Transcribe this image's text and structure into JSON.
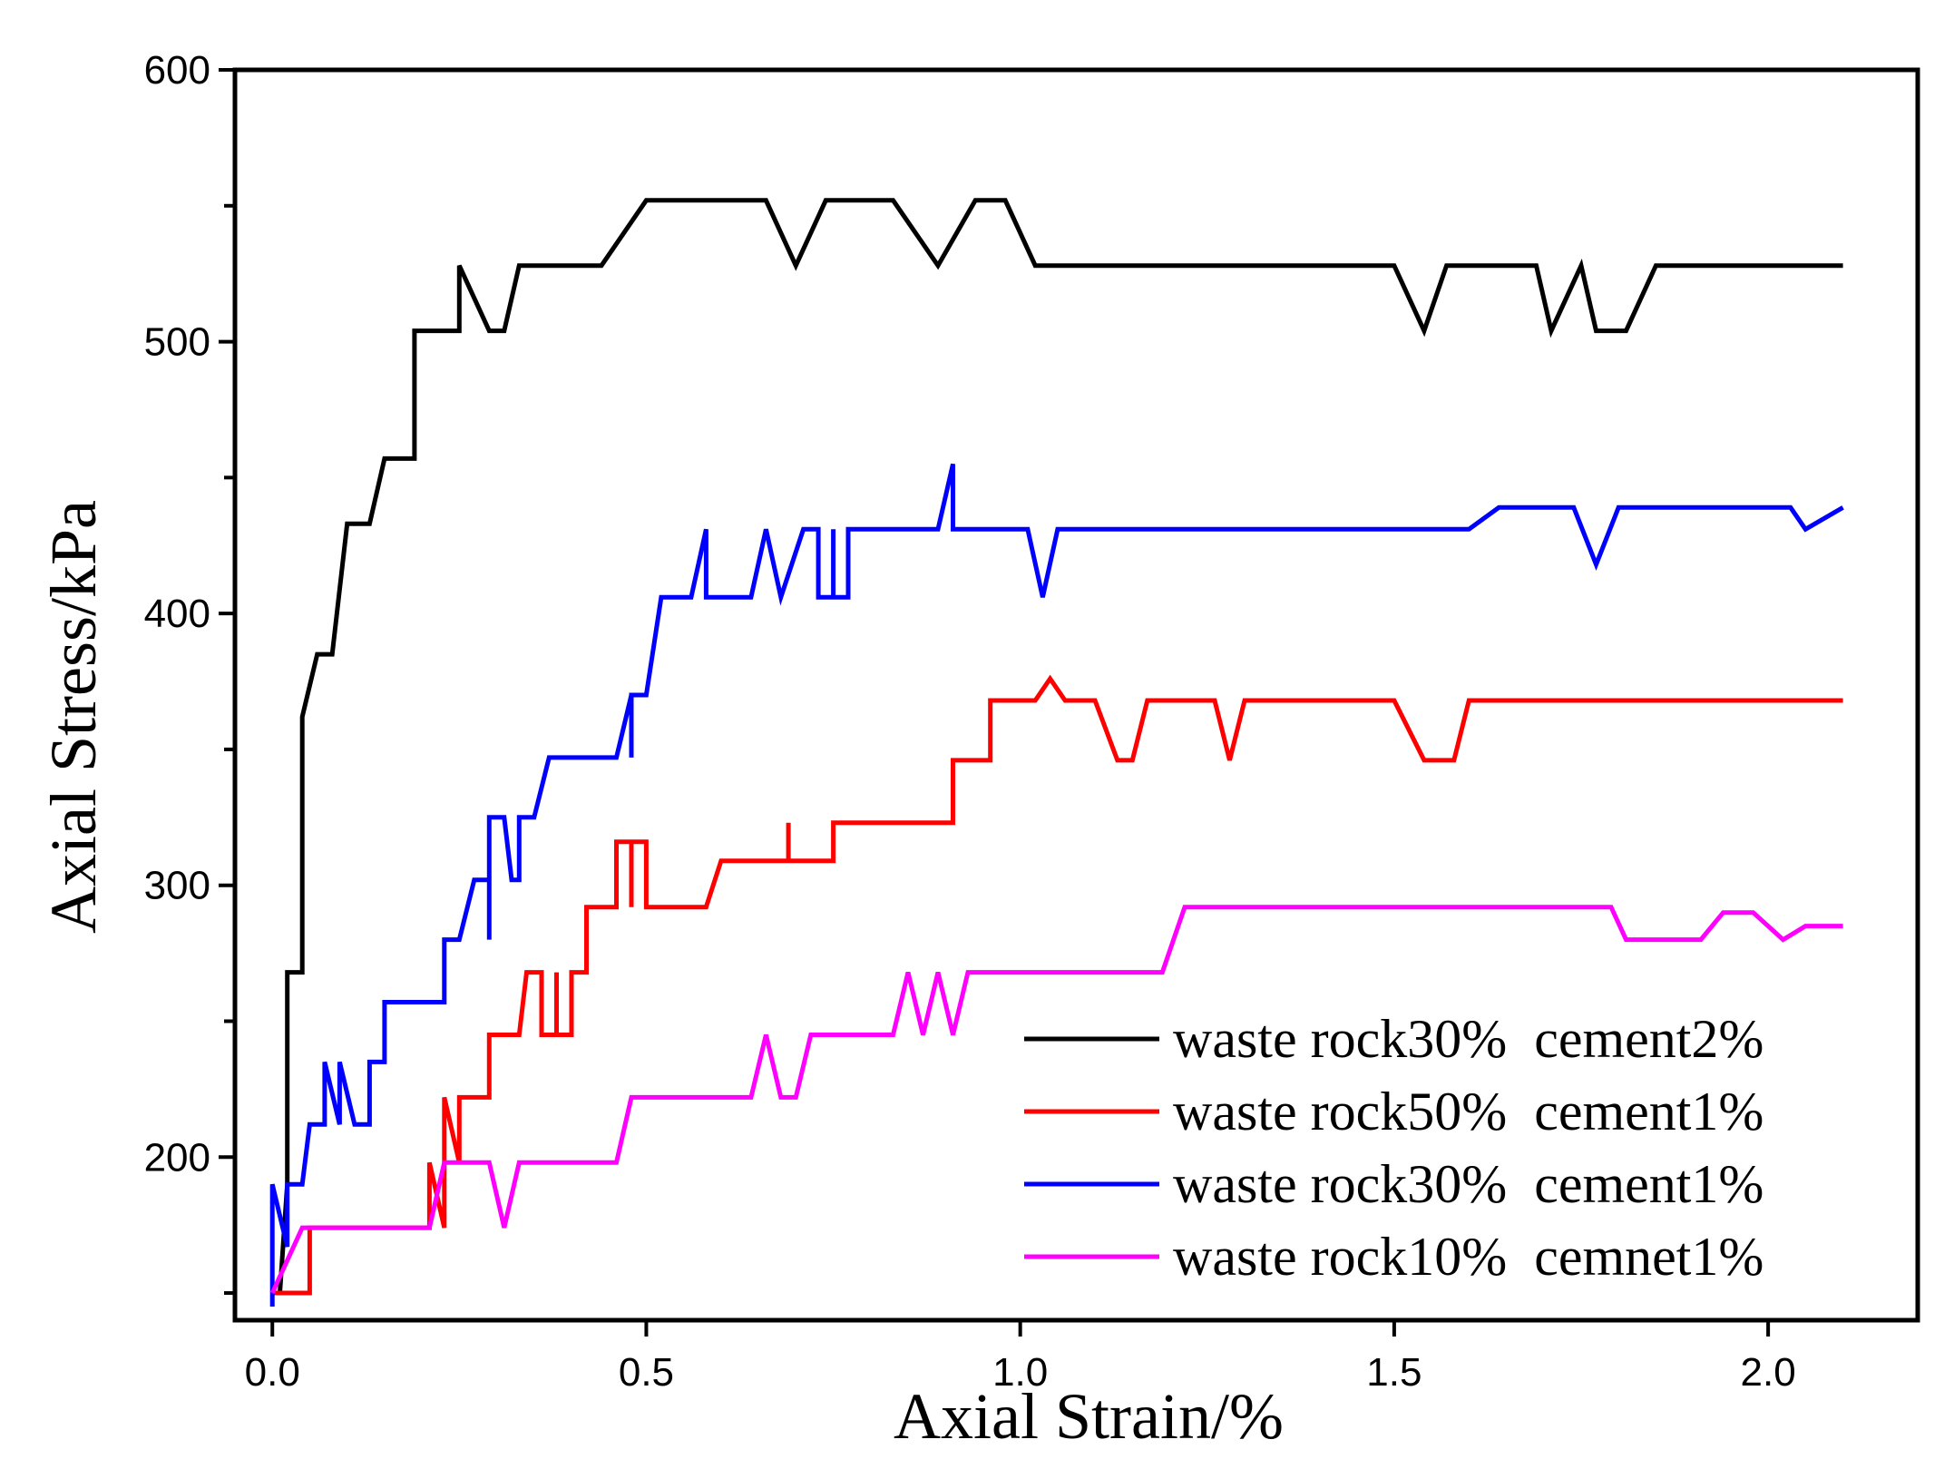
{
  "chart_data": {
    "type": "line",
    "title": "",
    "xlabel": "Axial Strain/%",
    "ylabel": "Axial Stress/kPa",
    "xlim": [
      -0.05,
      2.2
    ],
    "ylim": [
      140,
      600
    ],
    "xticks": [
      0.0,
      0.5,
      1.0,
      1.5,
      2.0
    ],
    "xtick_labels": [
      "0.0",
      "0.5",
      "1.0",
      "1.5",
      "2.0"
    ],
    "yticks": [
      200,
      300,
      400,
      500,
      600
    ],
    "ytick_labels": [
      "200",
      "300",
      "400",
      "500",
      "600"
    ],
    "y_minor_ticks": [
      150,
      250,
      350,
      450,
      550
    ],
    "grid": false,
    "legend_position": "bottom-right",
    "series": [
      {
        "name": "waste rock30%  cement2%",
        "color": "#000000",
        "points": [
          [
            0,
            150
          ],
          [
            0.01,
            150
          ],
          [
            0.02,
            190
          ],
          [
            0.02,
            268
          ],
          [
            0.04,
            268
          ],
          [
            0.04,
            362
          ],
          [
            0.06,
            385
          ],
          [
            0.08,
            385
          ],
          [
            0.1,
            433
          ],
          [
            0.13,
            433
          ],
          [
            0.15,
            457
          ],
          [
            0.19,
            457
          ],
          [
            0.19,
            504
          ],
          [
            0.25,
            504
          ],
          [
            0.25,
            528
          ],
          [
            0.29,
            504
          ],
          [
            0.31,
            504
          ],
          [
            0.33,
            528
          ],
          [
            0.44,
            528
          ],
          [
            0.5,
            552
          ],
          [
            0.66,
            552
          ],
          [
            0.7,
            528
          ],
          [
            0.74,
            552
          ],
          [
            0.83,
            552
          ],
          [
            0.89,
            528
          ],
          [
            0.94,
            552
          ],
          [
            0.98,
            552
          ],
          [
            1.02,
            528
          ],
          [
            1.5,
            528
          ],
          [
            1.54,
            504
          ],
          [
            1.57,
            528
          ],
          [
            1.69,
            528
          ],
          [
            1.71,
            504
          ],
          [
            1.75,
            528
          ],
          [
            1.77,
            504
          ],
          [
            1.81,
            504
          ],
          [
            1.85,
            528
          ],
          [
            2.1,
            528
          ]
        ]
      },
      {
        "name": "waste rock50%  cement1%",
        "color": "#ff0000",
        "points": [
          [
            0,
            150
          ],
          [
            0.05,
            150
          ],
          [
            0.05,
            174
          ],
          [
            0.21,
            174
          ],
          [
            0.21,
            198
          ],
          [
            0.23,
            174
          ],
          [
            0.23,
            222
          ],
          [
            0.25,
            198
          ],
          [
            0.25,
            222
          ],
          [
            0.29,
            222
          ],
          [
            0.29,
            245
          ],
          [
            0.33,
            245
          ],
          [
            0.34,
            268
          ],
          [
            0.36,
            268
          ],
          [
            0.36,
            245
          ],
          [
            0.38,
            245
          ],
          [
            0.38,
            268
          ],
          [
            0.38,
            245
          ],
          [
            0.4,
            245
          ],
          [
            0.4,
            268
          ],
          [
            0.42,
            268
          ],
          [
            0.42,
            292
          ],
          [
            0.46,
            292
          ],
          [
            0.46,
            316
          ],
          [
            0.48,
            316
          ],
          [
            0.48,
            292
          ],
          [
            0.48,
            316
          ],
          [
            0.5,
            316
          ],
          [
            0.5,
            292
          ],
          [
            0.58,
            292
          ],
          [
            0.6,
            309
          ],
          [
            0.69,
            309
          ],
          [
            0.69,
            323
          ],
          [
            0.69,
            309
          ],
          [
            0.75,
            309
          ],
          [
            0.75,
            323
          ],
          [
            0.91,
            323
          ],
          [
            0.91,
            346
          ],
          [
            0.96,
            346
          ],
          [
            0.96,
            368
          ],
          [
            1.02,
            368
          ],
          [
            1.04,
            376
          ],
          [
            1.06,
            368
          ],
          [
            1.1,
            368
          ],
          [
            1.13,
            346
          ],
          [
            1.15,
            346
          ],
          [
            1.17,
            368
          ],
          [
            1.26,
            368
          ],
          [
            1.28,
            346
          ],
          [
            1.3,
            368
          ],
          [
            1.5,
            368
          ],
          [
            1.54,
            346
          ],
          [
            1.58,
            346
          ],
          [
            1.6,
            368
          ],
          [
            2.1,
            368
          ]
        ]
      },
      {
        "name": "waste rock30%  cement1%",
        "color": "#0000ff",
        "points": [
          [
            0,
            145
          ],
          [
            0,
            190
          ],
          [
            0.02,
            167
          ],
          [
            0.02,
            190
          ],
          [
            0.04,
            190
          ],
          [
            0.05,
            212
          ],
          [
            0.07,
            212
          ],
          [
            0.07,
            235
          ],
          [
            0.09,
            212
          ],
          [
            0.09,
            235
          ],
          [
            0.11,
            212
          ],
          [
            0.13,
            212
          ],
          [
            0.13,
            235
          ],
          [
            0.15,
            235
          ],
          [
            0.15,
            257
          ],
          [
            0.23,
            257
          ],
          [
            0.23,
            280
          ],
          [
            0.25,
            280
          ],
          [
            0.27,
            302
          ],
          [
            0.29,
            302
          ],
          [
            0.29,
            280
          ],
          [
            0.29,
            325
          ],
          [
            0.31,
            325
          ],
          [
            0.32,
            302
          ],
          [
            0.33,
            302
          ],
          [
            0.33,
            325
          ],
          [
            0.35,
            325
          ],
          [
            0.37,
            347
          ],
          [
            0.46,
            347
          ],
          [
            0.48,
            370
          ],
          [
            0.48,
            347
          ],
          [
            0.48,
            370
          ],
          [
            0.5,
            370
          ],
          [
            0.52,
            406
          ],
          [
            0.56,
            406
          ],
          [
            0.58,
            431
          ],
          [
            0.58,
            406
          ],
          [
            0.64,
            406
          ],
          [
            0.66,
            431
          ],
          [
            0.68,
            406
          ],
          [
            0.71,
            431
          ],
          [
            0.73,
            431
          ],
          [
            0.73,
            406
          ],
          [
            0.75,
            406
          ],
          [
            0.75,
            431
          ],
          [
            0.75,
            406
          ],
          [
            0.77,
            406
          ],
          [
            0.77,
            431
          ],
          [
            0.89,
            431
          ],
          [
            0.91,
            455
          ],
          [
            0.91,
            431
          ],
          [
            1.01,
            431
          ],
          [
            1.03,
            406
          ],
          [
            1.05,
            431
          ],
          [
            1.6,
            431
          ],
          [
            1.64,
            439
          ],
          [
            1.74,
            439
          ],
          [
            1.77,
            418
          ],
          [
            1.8,
            439
          ],
          [
            2.03,
            439
          ],
          [
            2.05,
            431
          ],
          [
            2.1,
            439
          ]
        ]
      },
      {
        "name": "waste rock10%  cemnet1%",
        "color": "#ff00ff",
        "points": [
          [
            0,
            150
          ],
          [
            0.04,
            174
          ],
          [
            0.21,
            174
          ],
          [
            0.23,
            198
          ],
          [
            0.29,
            198
          ],
          [
            0.31,
            174
          ],
          [
            0.33,
            198
          ],
          [
            0.46,
            198
          ],
          [
            0.48,
            222
          ],
          [
            0.64,
            222
          ],
          [
            0.66,
            245
          ],
          [
            0.68,
            222
          ],
          [
            0.7,
            222
          ],
          [
            0.72,
            245
          ],
          [
            0.83,
            245
          ],
          [
            0.85,
            268
          ],
          [
            0.87,
            245
          ],
          [
            0.89,
            268
          ],
          [
            0.91,
            245
          ],
          [
            0.93,
            268
          ],
          [
            1.19,
            268
          ],
          [
            1.22,
            292
          ],
          [
            1.79,
            292
          ],
          [
            1.81,
            280
          ],
          [
            1.91,
            280
          ],
          [
            1.94,
            290
          ],
          [
            1.98,
            290
          ],
          [
            2.02,
            280
          ],
          [
            2.05,
            285
          ],
          [
            2.1,
            285
          ]
        ]
      }
    ]
  }
}
